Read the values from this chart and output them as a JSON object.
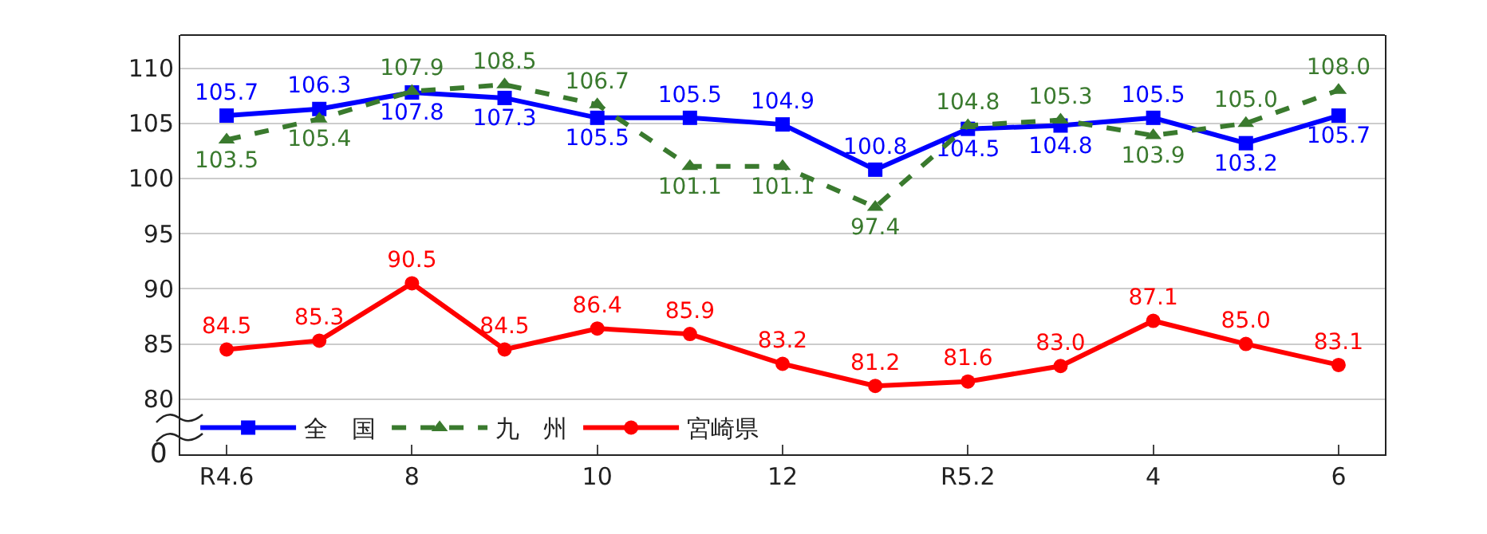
{
  "chart_data": {
    "type": "line",
    "categories": [
      "R4.6",
      null,
      "8",
      null,
      "10",
      null,
      "12",
      null,
      "R5.2",
      null,
      "4",
      null,
      "6"
    ],
    "series": [
      {
        "name": "全　国",
        "color": "#0000ff",
        "marker": "square",
        "line_style": "solid",
        "values": [
          105.7,
          106.3,
          107.8,
          107.3,
          105.5,
          105.5,
          104.9,
          100.8,
          104.5,
          104.8,
          105.5,
          103.2,
          105.7
        ],
        "value_labels": [
          "105.7",
          "106.3",
          "107.8",
          "107.3",
          "105.5",
          "105.5",
          "104.9",
          "100.8",
          "104.5",
          "104.8",
          "105.5",
          "103.2",
          "105.7"
        ]
      },
      {
        "name": "九　州",
        "color": "#3a7a2e",
        "marker": "triangle",
        "line_style": "dashed",
        "values": [
          103.5,
          105.4,
          107.9,
          108.5,
          106.7,
          101.1,
          101.1,
          97.4,
          104.8,
          105.3,
          103.9,
          105.0,
          108.0
        ],
        "value_labels": [
          "103.5",
          "105.4",
          "107.9",
          "108.5",
          "106.7",
          "101.1",
          "101.1",
          "97.4",
          "104.8",
          "105.3",
          "103.9",
          "105.0",
          "108.0"
        ]
      },
      {
        "name": "宮崎県",
        "color": "#ff0000",
        "marker": "circle",
        "line_style": "solid",
        "values": [
          84.5,
          85.3,
          90.5,
          84.5,
          86.4,
          85.9,
          83.2,
          81.2,
          81.6,
          83.0,
          87.1,
          85.0,
          83.1
        ],
        "value_labels": [
          "84.5",
          "85.3",
          "90.5",
          "84.5",
          "86.4",
          "85.9",
          "83.2",
          "81.2",
          "81.6",
          "83.0",
          "87.1",
          "85.0",
          "83.1"
        ]
      }
    ],
    "ylim": [
      75,
      113
    ],
    "yticks": [
      80,
      85,
      90,
      95,
      100,
      105,
      110
    ],
    "annotations": [
      "0"
    ],
    "grid": "y",
    "legend": "bottom left"
  }
}
